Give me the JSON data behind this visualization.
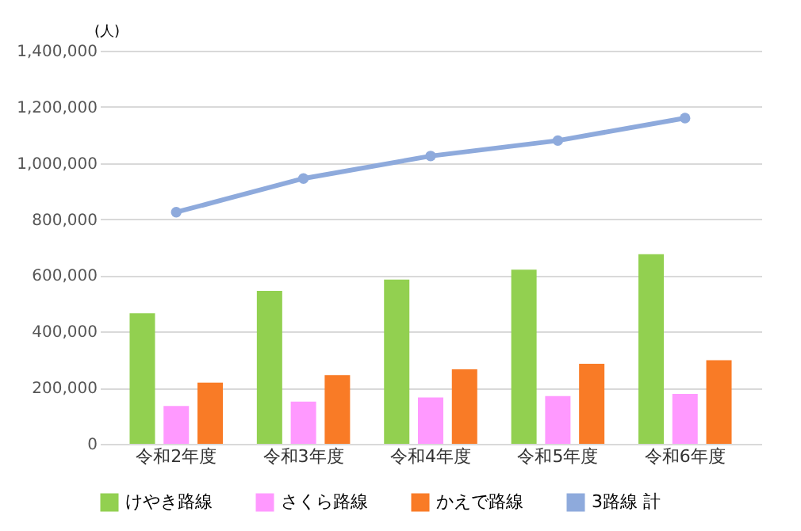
{
  "chart_data": {
    "type": "bar",
    "ylabel": "(人)",
    "categories": [
      "令和2年度",
      "令和3年度",
      "令和4年度",
      "令和5年度",
      "令和6年度"
    ],
    "series": [
      {
        "name": "けやき路線",
        "color": "#92d050",
        "values": [
          465000,
          545000,
          585000,
          620000,
          675000
        ]
      },
      {
        "name": "さくら路線",
        "color": "#ff99ff",
        "values": [
          135000,
          150000,
          165000,
          170000,
          178000
        ]
      },
      {
        "name": "かえで路線",
        "color": "#f97b26",
        "values": [
          218000,
          245000,
          265000,
          285000,
          298000
        ]
      },
      {
        "name": "3路線 計",
        "color": "#8eaadc",
        "type": "line",
        "marker": "circle",
        "values": [
          825000,
          945000,
          1025000,
          1080000,
          1160000
        ]
      }
    ],
    "ylim": [
      0,
      1400000
    ],
    "yticks": [
      0,
      {
        "value": 200000,
        "label": "200,000"
      },
      {
        "value": 400000,
        "label": "400,000"
      },
      {
        "value": 600000,
        "label": "600,000"
      },
      {
        "value": 800000,
        "label": "800,000"
      },
      {
        "value": 1000000,
        "label": "1,000,000"
      },
      {
        "value": 1200000,
        "label": "1,200,000"
      },
      {
        "value": 1400000,
        "label": "1,400,000"
      }
    ],
    "grid": "y",
    "legend": "bottom"
  }
}
